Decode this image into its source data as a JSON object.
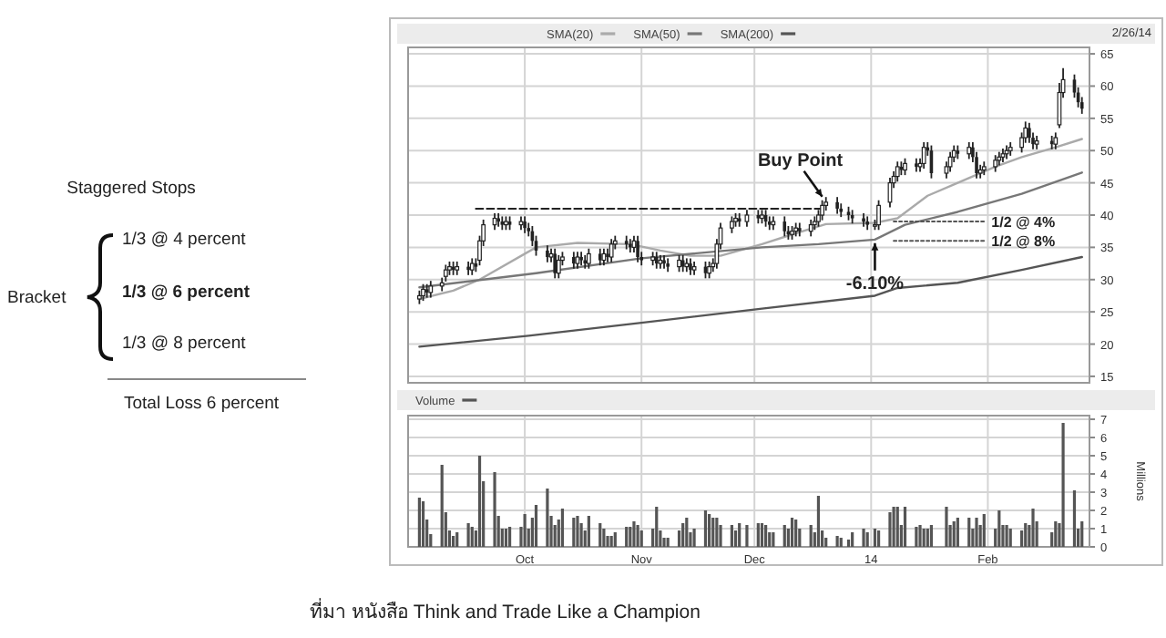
{
  "chart_data": [
    {
      "type": "other",
      "annotations": [
        "Staggered Stops",
        "1/3 @ 4 percent",
        "1/3 @ 6 percent",
        "1/3 @ 8 percent",
        "Bracket",
        "Total Loss 6 percent",
        "ที่มา หนังสือ Think and Trade Like a Champion"
      ]
    },
    {
      "type": "candlestick",
      "legend": "top",
      "grid": true,
      "tick_labels": "y",
      "xlim": [
        "2013-08-31",
        "2014-02-28"
      ],
      "ylim": [
        14,
        66
      ],
      "yticks": [
        15,
        20,
        25,
        30,
        35,
        40,
        45,
        50,
        55,
        60,
        65
      ],
      "xticks": [
        {
          "value": "2013-10-01",
          "label": null
        },
        {
          "value": "2013-11-01",
          "label": null
        },
        {
          "value": "2013-12-01",
          "label": null
        },
        {
          "value": "2014-01-01",
          "label": null
        },
        {
          "value": "2014-02-01",
          "label": null
        }
      ],
      "x": [
        "2013-09-03",
        "2013-09-04",
        "2013-09-05",
        "2013-09-06",
        "2013-09-09",
        "2013-09-10",
        "2013-09-11",
        "2013-09-12",
        "2013-09-13",
        "2013-09-16",
        "2013-09-17",
        "2013-09-18",
        "2013-09-19",
        "2013-09-20",
        "2013-09-23",
        "2013-09-24",
        "2013-09-25",
        "2013-09-26",
        "2013-09-27",
        "2013-09-30",
        "2013-10-01",
        "2013-10-02",
        "2013-10-03",
        "2013-10-04",
        "2013-10-07",
        "2013-10-08",
        "2013-10-09",
        "2013-10-10",
        "2013-10-11",
        "2013-10-14",
        "2013-10-15",
        "2013-10-16",
        "2013-10-17",
        "2013-10-18",
        "2013-10-21",
        "2013-10-22",
        "2013-10-23",
        "2013-10-24",
        "2013-10-25",
        "2013-10-28",
        "2013-10-29",
        "2013-10-30",
        "2013-10-31",
        "2013-11-01",
        "2013-11-04",
        "2013-11-05",
        "2013-11-06",
        "2013-11-07",
        "2013-11-08",
        "2013-11-11",
        "2013-11-12",
        "2013-11-13",
        "2013-11-14",
        "2013-11-15",
        "2013-11-18",
        "2013-11-19",
        "2013-11-20",
        "2013-11-21",
        "2013-11-22",
        "2013-11-25",
        "2013-11-26",
        "2013-11-27",
        "2013-11-29",
        "2013-12-02",
        "2013-12-03",
        "2013-12-04",
        "2013-12-05",
        "2013-12-06",
        "2013-12-09",
        "2013-12-10",
        "2013-12-11",
        "2013-12-12",
        "2013-12-13",
        "2013-12-16",
        "2013-12-17",
        "2013-12-18",
        "2013-12-19",
        "2013-12-20",
        "2013-12-23",
        "2013-12-24",
        "2013-12-26",
        "2013-12-27",
        "2013-12-30",
        "2013-12-31",
        "2014-01-02",
        "2014-01-03",
        "2014-01-06",
        "2014-01-07",
        "2014-01-08",
        "2014-01-09",
        "2014-01-10",
        "2014-01-13",
        "2014-01-14",
        "2014-01-15",
        "2014-01-16",
        "2014-01-17",
        "2014-01-21",
        "2014-01-22",
        "2014-01-23",
        "2014-01-24",
        "2014-01-27",
        "2014-01-28",
        "2014-01-29",
        "2014-01-30",
        "2014-01-31",
        "2014-02-03",
        "2014-02-04",
        "2014-02-05",
        "2014-02-06",
        "2014-02-07",
        "2014-02-10",
        "2014-02-11",
        "2014-02-12",
        "2014-02-13",
        "2014-02-14",
        "2014-02-18",
        "2014-02-19",
        "2014-02-20",
        "2014-02-21",
        "2014-02-24",
        "2014-02-25",
        "2014-02-26"
      ],
      "ohlc": [
        [
          27,
          28.3,
          26.2,
          27.5
        ],
        [
          27.5,
          29.3,
          26.7,
          28.5
        ],
        [
          28.5,
          29.3,
          27.2,
          28
        ],
        [
          28,
          29.8,
          27.2,
          29
        ],
        [
          29,
          30.3,
          28.2,
          29.5
        ],
        [
          30.5,
          32.3,
          29.7,
          31.5
        ],
        [
          31.5,
          32.8,
          30.7,
          32
        ],
        [
          32,
          32.8,
          30.7,
          31.5
        ],
        [
          31.5,
          32.8,
          30.7,
          32
        ],
        [
          32,
          32.8,
          30.7,
          31.5
        ],
        [
          31.5,
          33.3,
          30.7,
          32.5
        ],
        [
          32.5,
          33.3,
          31.2,
          32
        ],
        [
          33,
          36.8,
          32.2,
          36
        ],
        [
          36,
          39.3,
          35.2,
          38.5
        ],
        [
          38.5,
          40.3,
          37.7,
          39.5
        ],
        [
          39.5,
          40.3,
          38.2,
          39
        ],
        [
          39,
          39.8,
          37.7,
          38.5
        ],
        [
          38.5,
          39.8,
          37.7,
          39
        ],
        [
          39,
          39.8,
          37.7,
          38.5
        ],
        [
          38.5,
          39.8,
          37.7,
          39
        ],
        [
          39,
          39.8,
          37.2,
          38
        ],
        [
          38,
          38.8,
          36.7,
          37.5
        ],
        [
          37.5,
          38.3,
          35.2,
          36
        ],
        [
          36,
          36.8,
          33.7,
          34.5
        ],
        [
          34.5,
          35.3,
          32.7,
          33.5
        ],
        [
          33.5,
          34.8,
          32.7,
          34
        ],
        [
          34,
          34.8,
          30.2,
          31
        ],
        [
          31,
          33.8,
          30.2,
          33
        ],
        [
          33,
          34.3,
          32.2,
          33.5
        ],
        [
          33.5,
          34.3,
          31.7,
          32.5
        ],
        [
          32.5,
          34.3,
          31.7,
          33.5
        ],
        [
          33.5,
          34.3,
          32.2,
          33
        ],
        [
          33,
          33.8,
          31.7,
          32.5
        ],
        [
          32.5,
          34.8,
          31.7,
          34
        ],
        [
          34,
          34.8,
          32.2,
          33
        ],
        [
          33,
          34.8,
          32.2,
          34
        ],
        [
          34,
          34.8,
          32.7,
          33.5
        ],
        [
          33.5,
          36.3,
          32.7,
          35.5
        ],
        [
          35.5,
          36.8,
          34.7,
          36
        ],
        [
          36,
          36.8,
          34.7,
          35.5
        ],
        [
          35.5,
          36.3,
          34.2,
          35
        ],
        [
          35,
          36.8,
          34.2,
          36
        ],
        [
          36,
          36.8,
          32.7,
          33.5
        ],
        [
          33.5,
          34.3,
          32.2,
          33
        ],
        [
          33,
          34.3,
          32.2,
          33.5
        ],
        [
          33.5,
          34.3,
          31.7,
          32.5
        ],
        [
          32.5,
          33.8,
          31.7,
          33
        ],
        [
          33,
          33.8,
          31.7,
          32.5
        ],
        [
          32.5,
          33.3,
          31.2,
          32
        ],
        [
          32,
          33.8,
          31.2,
          33
        ],
        [
          33,
          33.8,
          31.2,
          32
        ],
        [
          32,
          33.3,
          31.2,
          32.5
        ],
        [
          32.5,
          33.3,
          30.7,
          31.5
        ],
        [
          31.5,
          32.8,
          30.7,
          32
        ],
        [
          32,
          32.8,
          30.2,
          31
        ],
        [
          31,
          32.8,
          30.2,
          32
        ],
        [
          32,
          33.3,
          31.2,
          32.5
        ],
        [
          32.5,
          36.3,
          31.7,
          35.5
        ],
        [
          35.5,
          38.8,
          34.7,
          38
        ],
        [
          38,
          39.8,
          37.2,
          39
        ],
        [
          39,
          40.3,
          38.2,
          39.5
        ],
        [
          39.5,
          40.3,
          38.2,
          39
        ],
        [
          39,
          40.8,
          38.2,
          40
        ],
        [
          40,
          40.8,
          38.7,
          39.5
        ],
        [
          39.5,
          40.8,
          38.7,
          40
        ],
        [
          40,
          40.8,
          38.2,
          39
        ],
        [
          39,
          39.8,
          37.7,
          38.5
        ],
        [
          38.5,
          39.8,
          37.7,
          39
        ],
        [
          39,
          39.8,
          36.7,
          37.5
        ],
        [
          37.5,
          38.3,
          36.2,
          37
        ],
        [
          37,
          38.3,
          36.2,
          37.5
        ],
        [
          37.5,
          38.8,
          36.7,
          38
        ],
        [
          38,
          38.8,
          36.7,
          37.5
        ],
        [
          37.5,
          39.3,
          36.7,
          38.5
        ],
        [
          38.5,
          39.8,
          37.7,
          39
        ],
        [
          39,
          40.8,
          38.2,
          40
        ],
        [
          40,
          42.3,
          39.2,
          41.5
        ],
        [
          41.5,
          42.8,
          40.7,
          42
        ],
        [
          42,
          42.8,
          40.2,
          41
        ],
        [
          41,
          41.8,
          39.7,
          40.5
        ],
        [
          40.5,
          41.3,
          39.2,
          40
        ],
        [
          40,
          40.8,
          38.7,
          39.5
        ],
        [
          39.5,
          40.3,
          38.2,
          39
        ],
        [
          39,
          39.8,
          37.7,
          38.5
        ],
        [
          38.5,
          39.3,
          37.7,
          38.5
        ],
        [
          38.5,
          42.3,
          37.7,
          41.5
        ],
        [
          42,
          45.8,
          41.2,
          45
        ],
        [
          45,
          46.8,
          44.2,
          46
        ],
        [
          46,
          48.3,
          45.2,
          47.5
        ],
        [
          47.5,
          48.3,
          46.2,
          47
        ],
        [
          47,
          48.8,
          46.2,
          48
        ],
        [
          48,
          48.8,
          46.7,
          47.5
        ],
        [
          47.5,
          48.8,
          46.7,
          48
        ],
        [
          48,
          51.3,
          47.2,
          50.5
        ],
        [
          50.5,
          51.3,
          49.2,
          50
        ],
        [
          50,
          50.8,
          45.7,
          46.5
        ],
        [
          46.5,
          48.3,
          45.7,
          47.5
        ],
        [
          47.5,
          49.8,
          46.7,
          49
        ],
        [
          49,
          50.8,
          48.2,
          50
        ],
        [
          50,
          50.8,
          48.7,
          49.5
        ],
        [
          49.5,
          51.3,
          48.7,
          50.5
        ],
        [
          50.5,
          51.3,
          48.2,
          49
        ],
        [
          49,
          49.8,
          45.7,
          46.5
        ],
        [
          46.5,
          47.8,
          45.7,
          47
        ],
        [
          47,
          48.3,
          46.2,
          47.5
        ],
        [
          47.5,
          49.3,
          46.7,
          48.5
        ],
        [
          48.5,
          49.8,
          47.7,
          49
        ],
        [
          49,
          50.3,
          48.2,
          49.5
        ],
        [
          49.5,
          50.8,
          48.7,
          50
        ],
        [
          50,
          51.3,
          49.2,
          50.5
        ],
        [
          50.5,
          52.8,
          49.7,
          52
        ],
        [
          52,
          54.5,
          51.2,
          53.5
        ],
        [
          53.5,
          54.3,
          51.2,
          52
        ],
        [
          52,
          52.8,
          50.2,
          51
        ],
        [
          51,
          52.3,
          50.2,
          51.5
        ],
        [
          51.5,
          52.3,
          50.2,
          51
        ],
        [
          51,
          52.8,
          50.2,
          52
        ],
        [
          54,
          60.5,
          53.5,
          59
        ],
        [
          59,
          62.8,
          58.2,
          61
        ],
        [
          61,
          61.8,
          58.2,
          59
        ],
        [
          59,
          59.8,
          56.7,
          57.5
        ],
        [
          57.5,
          58.3,
          55.7,
          56.5
        ]
      ],
      "color": "#222222",
      "series": [
        {
          "type": "line",
          "name": "SMA(20)",
          "color": "#aaaaaa",
          "x": [
            "2013-09-03",
            "2013-09-12",
            "2013-09-19",
            "2013-10-04",
            "2013-10-15",
            "2013-10-29",
            "2013-11-06",
            "2013-11-14",
            "2013-11-22",
            "2013-12-03",
            "2013-12-11",
            "2013-12-20",
            "2014-01-02",
            "2014-01-08",
            "2014-01-16",
            "2014-01-24",
            "2014-02-03",
            "2014-02-10",
            "2014-02-19",
            "2014-02-26"
          ],
          "values": [
            27,
            28.3,
            30,
            35,
            35.7,
            35.5,
            34.5,
            33.7,
            33.7,
            35.5,
            37,
            38.6,
            38.8,
            39.5,
            43,
            45,
            47.5,
            49,
            50.5,
            51.8
          ]
        },
        {
          "type": "line",
          "name": "SMA(50)",
          "color": "#777777",
          "x": [
            "2013-09-03",
            "2013-10-04",
            "2013-11-01",
            "2013-12-03",
            "2013-12-18",
            "2014-01-02",
            "2014-01-10",
            "2014-01-24",
            "2014-02-10",
            "2014-02-26"
          ],
          "values": [
            28.8,
            31,
            33.3,
            35,
            35.5,
            36.2,
            38.5,
            40.5,
            43.3,
            46.6
          ]
        },
        {
          "type": "line",
          "name": "SMA(200)",
          "color": "#555555",
          "x": [
            "2013-09-03",
            "2013-10-02",
            "2013-11-01",
            "2013-12-03",
            "2014-01-02",
            "2014-01-08",
            "2014-01-24",
            "2014-02-10",
            "2014-02-26"
          ],
          "values": [
            19.6,
            21.3,
            23.3,
            25.5,
            27.5,
            28.7,
            29.5,
            31.5,
            33.5
          ]
        },
        {
          "type": "line",
          "color": "#222222",
          "line_style": "dashed",
          "x": [
            "2013-09-18",
            "2013-12-19"
          ],
          "values": [
            41,
            41
          ]
        },
        {
          "type": "line",
          "name": "1/2 @ 4%",
          "color": "#555555",
          "line_style": "dotted",
          "x": [
            "2014-01-07",
            "2014-01-31"
          ],
          "values": [
            39,
            39
          ]
        },
        {
          "type": "line",
          "name": "1/2 @ 8%",
          "color": "#555555",
          "line_style": "dotted",
          "x": [
            "2014-01-07",
            "2014-01-31"
          ],
          "values": [
            36,
            36
          ]
        }
      ],
      "annotations": [
        {
          "text": "Buy Point",
          "x": "2013-12-19",
          "y": 42
        },
        {
          "text": "-6.10%",
          "x": "2014-01-02",
          "y": 36.5
        },
        "2/26/14"
      ]
    },
    {
      "type": "bar",
      "legend": "top",
      "grid": true,
      "xlim": [
        "2013-08-31",
        "2014-02-28"
      ],
      "ylim": [
        0,
        7.2
      ],
      "yticks": [
        0,
        1,
        2,
        3,
        4,
        5,
        6,
        7
      ],
      "ylabel": "Millions",
      "xticks": [
        {
          "value": "2013-10-01",
          "label": "Oct"
        },
        {
          "value": "2013-11-01",
          "label": "Nov"
        },
        {
          "value": "2013-12-01",
          "label": "Dec"
        },
        {
          "value": "2014-01-01",
          "label": "14"
        },
        {
          "value": "2014-02-01",
          "label": "Feb"
        }
      ],
      "x": [
        "2013-09-03",
        "2013-09-04",
        "2013-09-05",
        "2013-09-06",
        "2013-09-09",
        "2013-09-10",
        "2013-09-11",
        "2013-09-12",
        "2013-09-13",
        "2013-09-16",
        "2013-09-17",
        "2013-09-18",
        "2013-09-19",
        "2013-09-20",
        "2013-09-23",
        "2013-09-24",
        "2013-09-25",
        "2013-09-26",
        "2013-09-27",
        "2013-09-30",
        "2013-10-01",
        "2013-10-02",
        "2013-10-03",
        "2013-10-04",
        "2013-10-07",
        "2013-10-08",
        "2013-10-09",
        "2013-10-10",
        "2013-10-11",
        "2013-10-14",
        "2013-10-15",
        "2013-10-16",
        "2013-10-17",
        "2013-10-18",
        "2013-10-21",
        "2013-10-22",
        "2013-10-23",
        "2013-10-24",
        "2013-10-25",
        "2013-10-28",
        "2013-10-29",
        "2013-10-30",
        "2013-10-31",
        "2013-11-01",
        "2013-11-04",
        "2013-11-05",
        "2013-11-06",
        "2013-11-07",
        "2013-11-08",
        "2013-11-11",
        "2013-11-12",
        "2013-11-13",
        "2013-11-14",
        "2013-11-15",
        "2013-11-18",
        "2013-11-19",
        "2013-11-20",
        "2013-11-21",
        "2013-11-22",
        "2013-11-25",
        "2013-11-26",
        "2013-11-27",
        "2013-11-29",
        "2013-12-02",
        "2013-12-03",
        "2013-12-04",
        "2013-12-05",
        "2013-12-06",
        "2013-12-09",
        "2013-12-10",
        "2013-12-11",
        "2013-12-12",
        "2013-12-13",
        "2013-12-16",
        "2013-12-17",
        "2013-12-18",
        "2013-12-19",
        "2013-12-20",
        "2013-12-23",
        "2013-12-24",
        "2013-12-26",
        "2013-12-27",
        "2013-12-30",
        "2013-12-31",
        "2014-01-02",
        "2014-01-03",
        "2014-01-06",
        "2014-01-07",
        "2014-01-08",
        "2014-01-09",
        "2014-01-10",
        "2014-01-13",
        "2014-01-14",
        "2014-01-15",
        "2014-01-16",
        "2014-01-17",
        "2014-01-21",
        "2014-01-22",
        "2014-01-23",
        "2014-01-24",
        "2014-01-27",
        "2014-01-28",
        "2014-01-29",
        "2014-01-30",
        "2014-01-31",
        "2014-02-03",
        "2014-02-04",
        "2014-02-05",
        "2014-02-06",
        "2014-02-07",
        "2014-02-10",
        "2014-02-11",
        "2014-02-12",
        "2014-02-13",
        "2014-02-14",
        "2014-02-18",
        "2014-02-19",
        "2014-02-20",
        "2014-02-21",
        "2014-02-24",
        "2014-02-25",
        "2014-02-26"
      ],
      "series": [
        {
          "name": "Volume",
          "color": "#555555",
          "values": [
            2.7,
            2.5,
            1.5,
            0.7,
            4.5,
            1.9,
            0.9,
            0.6,
            0.8,
            1.3,
            1.1,
            0.9,
            5.0,
            3.6,
            4.1,
            1.7,
            1.0,
            1.0,
            1.1,
            1.1,
            1.8,
            1.0,
            1.6,
            2.3,
            3.2,
            1.7,
            1.2,
            1.5,
            2.1,
            1.6,
            1.7,
            1.3,
            0.9,
            1.7,
            1.3,
            1.0,
            0.6,
            0.6,
            0.8,
            1.1,
            1.1,
            1.4,
            1.2,
            0.9,
            1.0,
            2.2,
            0.9,
            0.5,
            0.5,
            0.9,
            1.3,
            1.6,
            0.8,
            1.0,
            2.0,
            1.8,
            1.6,
            1.6,
            1.2,
            1.2,
            0.9,
            1.3,
            1.2,
            1.3,
            1.3,
            1.2,
            0.8,
            0.8,
            1.2,
            1.0,
            1.6,
            1.5,
            1.0,
            1.2,
            0.8,
            2.8,
            0.9,
            0.5,
            0.6,
            0.5,
            0.4,
            0.8,
            1.0,
            0.8,
            1.0,
            0.9,
            1.9,
            2.2,
            2.2,
            1.2,
            2.2,
            1.1,
            1.2,
            1.0,
            1.0,
            1.2,
            2.2,
            1.2,
            1.4,
            1.6,
            1.6,
            1.0,
            1.6,
            1.2,
            1.8,
            1.0,
            2.0,
            1.2,
            1.2,
            1.0,
            0.9,
            1.3,
            1.2,
            2.1,
            1.4,
            0.8,
            1.4,
            1.3,
            6.8,
            3.1,
            1.0,
            1.4
          ]
        }
      ]
    }
  ]
}
